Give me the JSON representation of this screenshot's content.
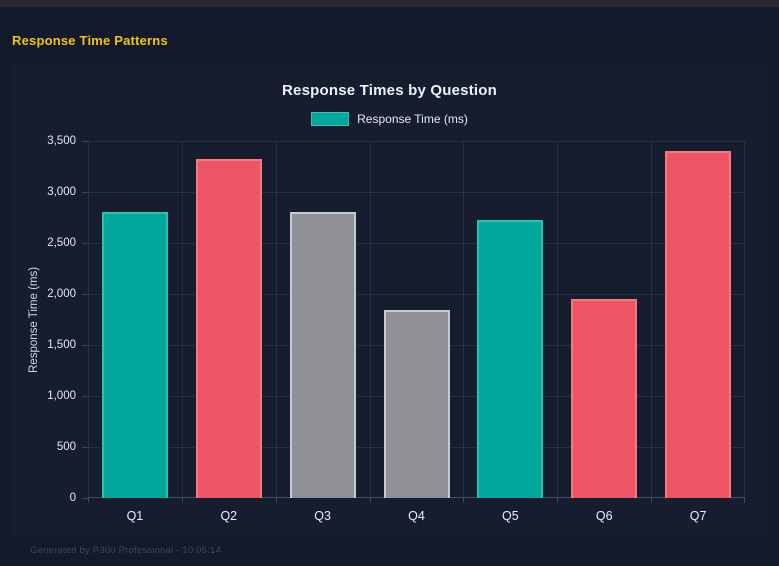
{
  "page": {
    "title": "Response Time Patterns"
  },
  "chart_data": {
    "type": "bar",
    "title": "Response Times by Question",
    "legend": {
      "label": "Response Time (ms)",
      "position": "top"
    },
    "categories": [
      "Q1",
      "Q2",
      "Q3",
      "Q4",
      "Q5",
      "Q6",
      "Q7"
    ],
    "values": [
      2800,
      3320,
      2805,
      1845,
      2725,
      1950,
      3405
    ],
    "xlabel": "",
    "ylabel": "Response Time (ms)",
    "ylim": [
      0,
      3500
    ],
    "ytick_step": 500,
    "grid": true,
    "bar_fill_colors": [
      "#02a79b",
      "#ef5564",
      "#8e9095",
      "#8e9095",
      "#02a79b",
      "#ef5564",
      "#ef5564"
    ],
    "bar_border_colors": [
      "#28c4b3",
      "#f47a7e",
      "#c7cad3",
      "#c7cad3",
      "#28c4b3",
      "#f47a7e",
      "#f47a7e"
    ],
    "legend_swatch_color": "#02a79b"
  },
  "footer": {
    "text": "Generated by P300 Professional - 10:05:14"
  },
  "colors": {
    "page_background": "#131a2b",
    "card_background": "#151d2f",
    "accent_title": "#f2c511",
    "gridline": "rgba(148,163,184,0.14)"
  }
}
